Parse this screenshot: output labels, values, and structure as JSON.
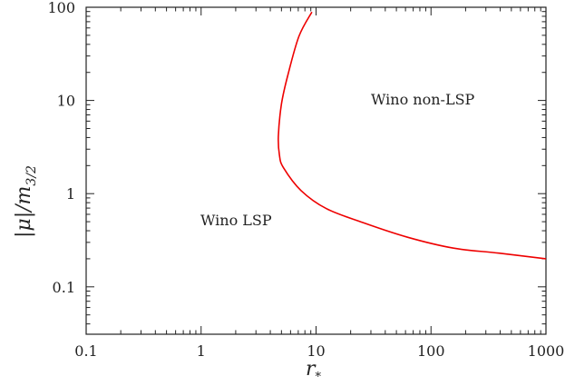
{
  "chart_data": {
    "type": "line",
    "title": "",
    "xlabel": "r_*",
    "ylabel": "|μ|/m_{3/2}",
    "xscale": "log",
    "yscale": "log",
    "xlim": [
      0.1,
      1000
    ],
    "ylim": [
      0.031,
      100
    ],
    "x_ticks": [
      "0.1",
      "1",
      "10",
      "100",
      "1000"
    ],
    "y_ticks": [
      "0.1",
      "1",
      "10",
      "100"
    ],
    "grid": false,
    "legend": null,
    "series": [
      {
        "name": "Wino LSP boundary",
        "color": "#ee0000",
        "points": [
          [
            9.2,
            89
          ],
          [
            7.1,
            48.8
          ],
          [
            5.7,
            19
          ],
          [
            5.0,
            9.1
          ],
          [
            4.7,
            4.1
          ],
          [
            4.8,
            2.6
          ],
          [
            5.2,
            1.9
          ],
          [
            7.4,
            1.08
          ],
          [
            12.3,
            0.69
          ],
          [
            25.5,
            0.49
          ],
          [
            63,
            0.34
          ],
          [
            157,
            0.26
          ],
          [
            389,
            0.23
          ],
          [
            1000,
            0.2
          ]
        ]
      }
    ],
    "annotations": [
      {
        "text": "Wino non-LSP",
        "x": 30,
        "y": 10
      },
      {
        "text": "Wino LSP",
        "x": 1,
        "y": 0.5
      }
    ]
  },
  "labels": {
    "xlabel_main": "r",
    "xlabel_sub": "*",
    "ylabel_text": "|μ|/m",
    "ylabel_sub": "3/2",
    "region_upper": "Wino non-LSP",
    "region_lower": "Wino LSP"
  }
}
